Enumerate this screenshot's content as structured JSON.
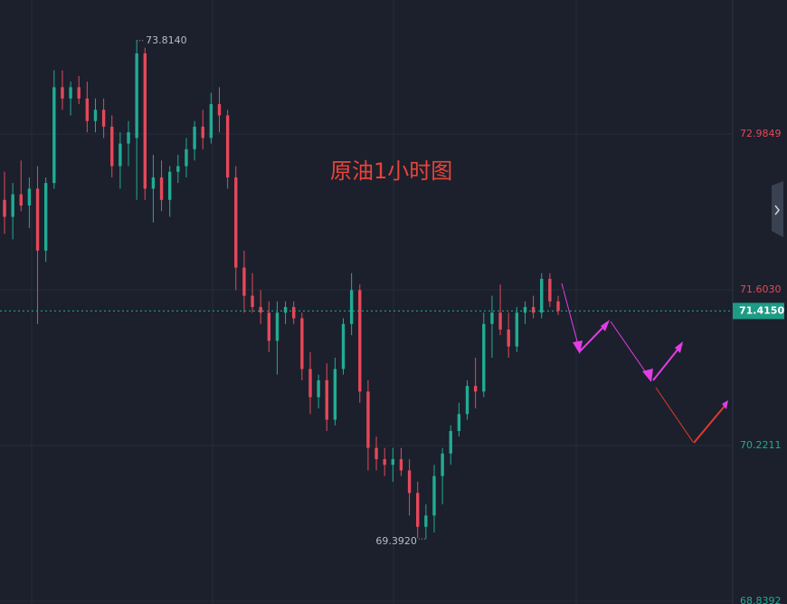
{
  "chart_data": {
    "type": "candlestick",
    "title": "原油1小时图",
    "up_color": "#22ab94",
    "down_color": "#e5485a",
    "open": [
      72.4,
      72.25,
      72.45,
      72.35,
      72.5,
      71.95,
      72.55,
      73.4,
      73.3,
      73.4,
      73.3,
      73.1,
      73.2,
      73.05,
      72.7,
      72.9,
      72.95,
      73.7,
      72.5,
      72.6,
      72.4,
      72.65,
      72.7,
      72.85,
      73.05,
      72.95,
      73.25,
      73.15,
      72.6,
      71.8,
      71.55,
      71.45,
      71.4,
      71.15,
      71.4,
      71.45,
      71.35,
      70.9,
      70.65,
      70.8,
      70.45,
      70.9,
      71.3,
      71.6,
      70.7,
      70.2,
      70.1,
      70.05,
      70.1,
      70.0,
      69.8,
      69.5,
      69.6,
      69.95,
      70.15,
      70.35,
      70.5,
      70.75,
      70.7,
      71.3,
      71.4,
      71.25,
      71.1,
      71.4,
      71.45,
      71.4,
      71.7,
      71.5
    ],
    "high": [
      72.65,
      72.55,
      72.75,
      72.6,
      72.7,
      72.6,
      73.55,
      73.55,
      73.45,
      73.5,
      73.45,
      73.3,
      73.3,
      73.15,
      73.0,
      73.1,
      73.814,
      73.75,
      72.8,
      72.75,
      72.7,
      72.8,
      72.95,
      73.1,
      73.2,
      73.35,
      73.4,
      73.2,
      72.7,
      71.95,
      71.75,
      71.6,
      71.5,
      71.5,
      71.5,
      71.5,
      71.4,
      71.05,
      70.85,
      70.95,
      71.0,
      71.35,
      71.75,
      71.65,
      70.8,
      70.3,
      70.2,
      70.2,
      70.2,
      70.1,
      69.9,
      69.7,
      70.05,
      70.2,
      70.4,
      70.6,
      70.8,
      71.0,
      71.4,
      71.55,
      71.65,
      71.4,
      71.45,
      71.5,
      71.55,
      71.75,
      71.75,
      71.55
    ],
    "low": [
      72.1,
      72.05,
      72.3,
      72.15,
      71.3,
      71.85,
      72.5,
      73.2,
      73.15,
      73.25,
      73.0,
      73.0,
      72.95,
      72.6,
      72.5,
      72.7,
      72.4,
      72.4,
      72.2,
      72.3,
      72.25,
      72.55,
      72.6,
      72.75,
      72.85,
      72.9,
      73.0,
      72.5,
      71.6,
      71.4,
      71.4,
      71.3,
      71.05,
      70.85,
      71.3,
      71.3,
      70.8,
      70.5,
      70.55,
      70.35,
      70.4,
      70.85,
      71.2,
      70.6,
      70.0,
      70.0,
      69.95,
      69.9,
      69.95,
      69.6,
      69.4,
      69.392,
      69.45,
      69.7,
      70.05,
      70.3,
      70.45,
      70.55,
      70.65,
      71.0,
      71.2,
      71.0,
      71.05,
      71.3,
      71.35,
      71.35,
      71.45,
      71.38
    ],
    "close": [
      72.25,
      72.45,
      72.35,
      72.5,
      71.95,
      72.55,
      73.4,
      73.3,
      73.4,
      73.3,
      73.1,
      73.2,
      73.05,
      72.7,
      72.9,
      73.0,
      73.7,
      72.5,
      72.6,
      72.4,
      72.65,
      72.7,
      72.85,
      73.05,
      72.95,
      73.25,
      73.15,
      72.6,
      71.8,
      71.55,
      71.45,
      71.4,
      71.15,
      71.4,
      71.45,
      71.35,
      70.9,
      70.65,
      70.8,
      70.45,
      70.9,
      71.3,
      71.6,
      70.7,
      70.2,
      70.1,
      70.05,
      70.1,
      70.0,
      69.8,
      69.5,
      69.6,
      69.95,
      70.15,
      70.35,
      70.5,
      70.75,
      70.7,
      71.3,
      71.4,
      71.25,
      71.1,
      71.4,
      71.45,
      71.4,
      71.7,
      71.5,
      71.415
    ],
    "ylim": [
      68.815,
      74.174
    ],
    "yticks": [
      72.9849,
      {
        "value": 71.603,
        "label": "71.6030"
      },
      70.2211,
      68.8392
    ],
    "last_price": {
      "value": 71.415,
      "label": "71.4150"
    },
    "high_mark": {
      "value": 73.814,
      "label": "73.8140"
    },
    "low_mark": {
      "value": 69.392,
      "label": "69.3920"
    },
    "grid": true
  }
}
